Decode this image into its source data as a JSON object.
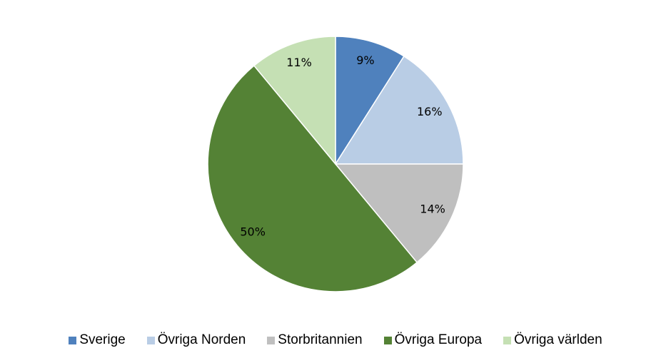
{
  "chart_data": {
    "type": "pie",
    "categories": [
      "Sverige",
      "Övriga Norden",
      "Storbritannien",
      "Övriga Europa",
      "Övriga världen"
    ],
    "values": [
      9,
      16,
      14,
      50,
      11
    ],
    "value_labels": [
      "9%",
      "16%",
      "14%",
      "50%",
      "11%"
    ],
    "colors": [
      "#4f81bd",
      "#b9cde5",
      "#bfbfbf",
      "#548235",
      "#c5e0b4"
    ],
    "legend": "bottom"
  }
}
